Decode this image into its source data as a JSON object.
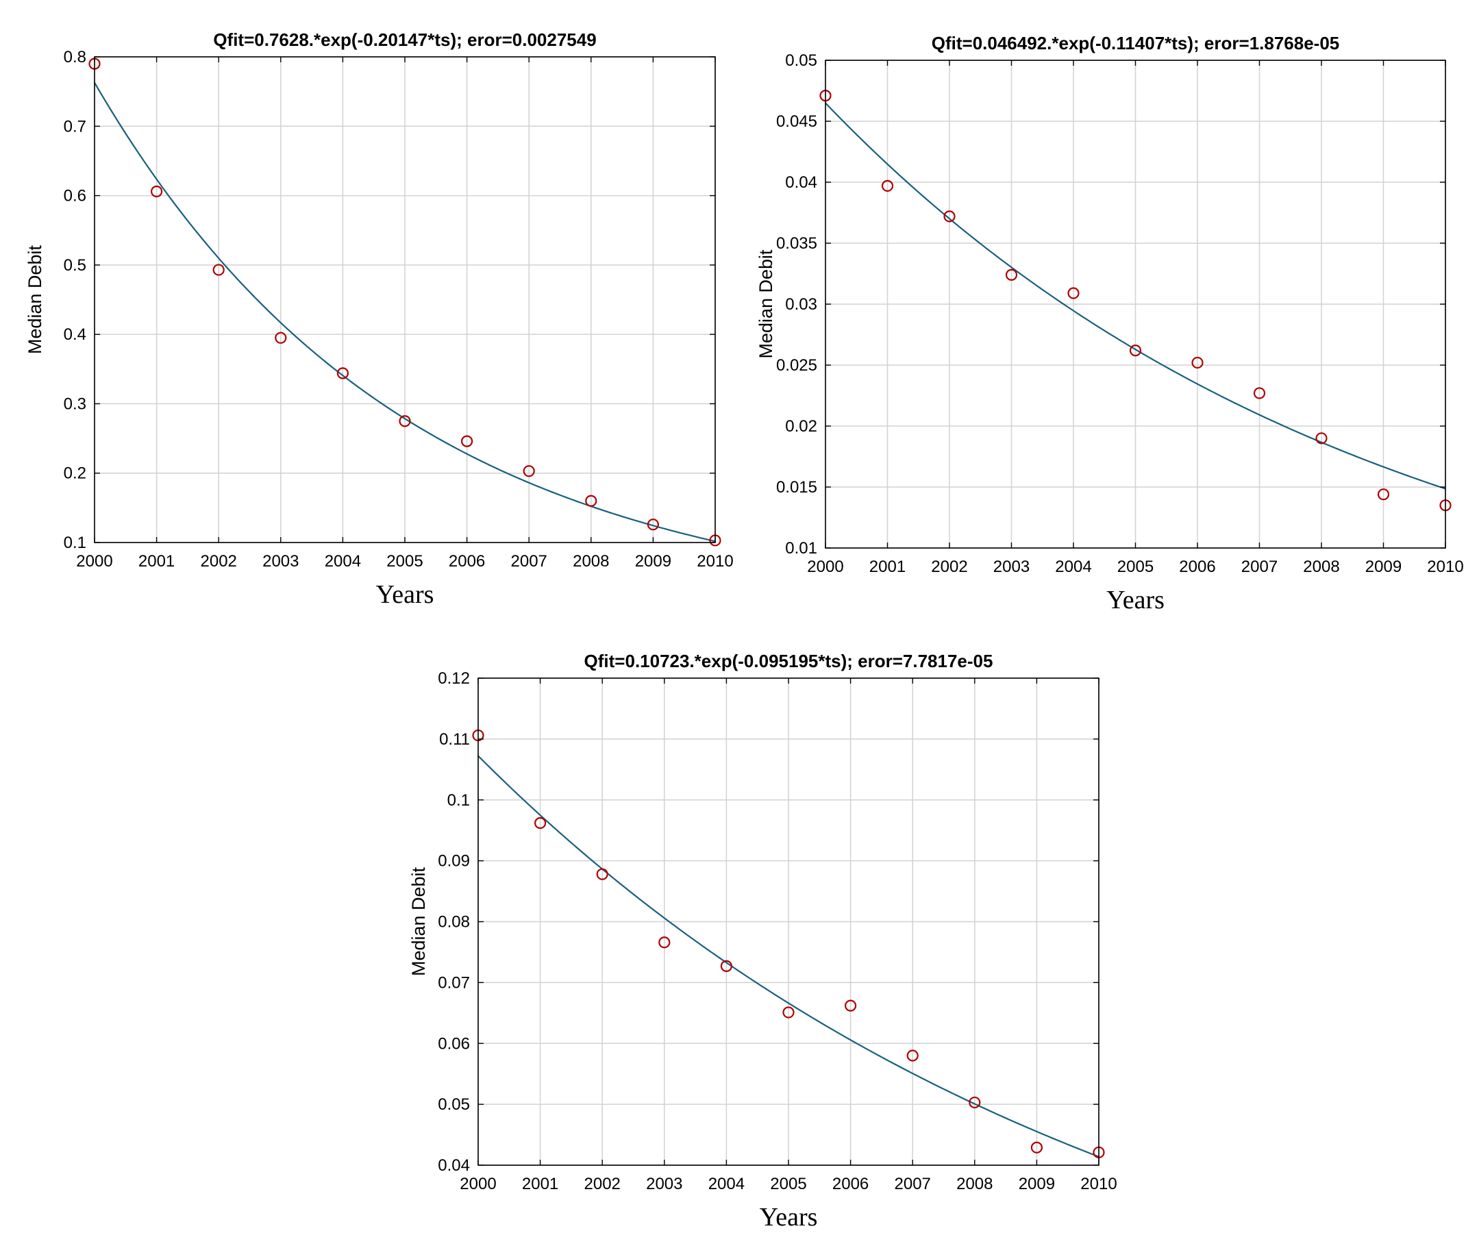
{
  "chart_data": [
    {
      "type": "scatter",
      "title": "Qfit=0.7628.*exp(-0.20147*ts);  eror=0.0027549",
      "xlabel": "Years",
      "ylabel": "Median Debit",
      "xlim": [
        2000,
        2010
      ],
      "ylim": [
        0.1,
        0.8
      ],
      "xticks": [
        "2000",
        "2001",
        "2002",
        "2003",
        "2004",
        "2005",
        "2006",
        "2007",
        "2008",
        "2009",
        "2010"
      ],
      "yticks": [
        "0.1",
        "0.2",
        "0.3",
        "0.4",
        "0.5",
        "0.6",
        "0.7",
        "0.8"
      ],
      "grid": true,
      "x": [
        2000,
        2001,
        2002,
        2003,
        2004,
        2005,
        2006,
        2007,
        2008,
        2009,
        2010
      ],
      "y": [
        0.79,
        0.606,
        0.493,
        0.395,
        0.344,
        0.275,
        0.246,
        0.203,
        0.16,
        0.126,
        0.103
      ],
      "fit": {
        "a": 0.7628,
        "b": -0.20147
      },
      "colors": {
        "fit": "#17607f",
        "points": "#b00000"
      }
    },
    {
      "type": "scatter",
      "title": "Qfit=0.046492.*exp(-0.11407*ts);  eror=1.8768e-05",
      "xlabel": "Years",
      "ylabel": "Median Debit",
      "xlim": [
        2000,
        2010
      ],
      "ylim": [
        0.01,
        0.05
      ],
      "xticks": [
        "2000",
        "2001",
        "2002",
        "2003",
        "2004",
        "2005",
        "2006",
        "2007",
        "2008",
        "2009",
        "2010"
      ],
      "yticks": [
        "0.01",
        "0.015",
        "0.02",
        "0.025",
        "0.03",
        "0.035",
        "0.04",
        "0.045",
        "0.05"
      ],
      "grid": true,
      "x": [
        2000,
        2001,
        2002,
        2003,
        2004,
        2005,
        2006,
        2007,
        2008,
        2009,
        2010
      ],
      "y": [
        0.0471,
        0.0397,
        0.0372,
        0.0324,
        0.0309,
        0.0262,
        0.0252,
        0.0227,
        0.019,
        0.0144,
        0.0135
      ],
      "fit": {
        "a": 0.046492,
        "b": -0.11407
      },
      "colors": {
        "fit": "#17607f",
        "points": "#b00000"
      }
    },
    {
      "type": "scatter",
      "title": "Qfit=0.10723.*exp(-0.095195*ts);  eror=7.7817e-05",
      "xlabel": "Years",
      "ylabel": "Median Debit",
      "xlim": [
        2000,
        2010
      ],
      "ylim": [
        0.04,
        0.12
      ],
      "xticks": [
        "2000",
        "2001",
        "2002",
        "2003",
        "2004",
        "2005",
        "2006",
        "2007",
        "2008",
        "2009",
        "2010"
      ],
      "yticks": [
        "0.04",
        "0.05",
        "0.06",
        "0.07",
        "0.08",
        "0.09",
        "0.1",
        "0.11",
        "0.12"
      ],
      "grid": true,
      "x": [
        2000,
        2001,
        2002,
        2003,
        2004,
        2005,
        2006,
        2007,
        2008,
        2009,
        2010
      ],
      "y": [
        0.1106,
        0.0962,
        0.0878,
        0.0766,
        0.0727,
        0.0651,
        0.0662,
        0.058,
        0.0503,
        0.0429,
        0.0421
      ],
      "fit": {
        "a": 0.10723,
        "b": -0.095195
      },
      "colors": {
        "fit": "#17607f",
        "points": "#b00000"
      }
    }
  ]
}
